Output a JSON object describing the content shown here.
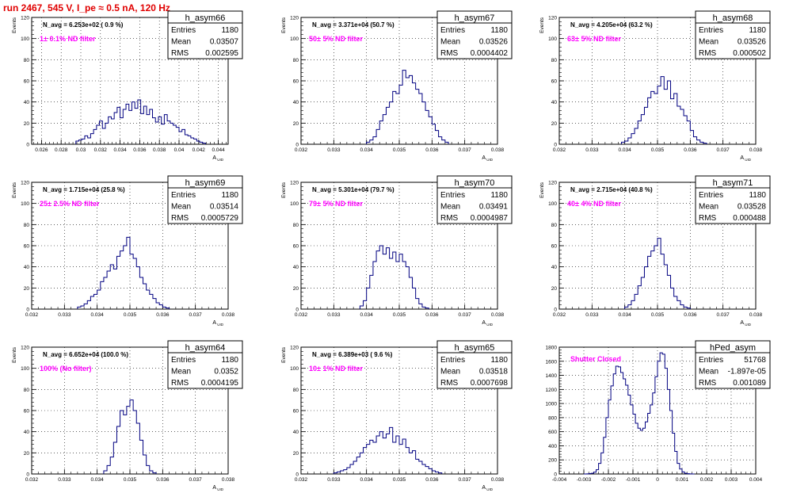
{
  "page_title": "run 2467,   545 V, I_pe ≈ 0.5 nA, 120 Hz",
  "colors": {
    "title": "#e00000",
    "annotation": "#ff00ff",
    "histogram": "#000080",
    "grid": "#000000"
  },
  "chart_data": [
    {
      "type": "histogram",
      "name": "h_asym66",
      "annotation": "1± 0.1% ND filter",
      "navg": "N_avg = 6.253e+02 ( 0.9 %)",
      "stats": {
        "entries": "1180",
        "mean": "0.03507",
        "rms": "0.002595"
      },
      "xlabel": "A_UID",
      "ylabel": "Events",
      "xlim": [
        0.025,
        0.045
      ],
      "ylim": [
        0,
        120
      ],
      "xticks": [
        "0.026",
        "0.028",
        "0.03",
        "0.032",
        "0.034",
        "0.036",
        "0.038",
        "0.04",
        "0.042",
        "0.044"
      ],
      "yticks": [
        "0",
        "20",
        "40",
        "60",
        "80",
        "100",
        "120"
      ],
      "bin_start": 0.0295,
      "bin_width": 0.0003,
      "values": [
        3,
        4,
        5,
        8,
        6,
        10,
        14,
        18,
        22,
        15,
        20,
        26,
        24,
        30,
        35,
        25,
        33,
        38,
        32,
        40,
        34,
        42,
        29,
        36,
        28,
        33,
        25,
        21,
        26,
        19,
        28,
        22,
        20,
        18,
        16,
        12,
        14,
        9,
        8,
        6,
        5,
        3,
        2,
        1
      ]
    },
    {
      "type": "histogram",
      "name": "h_asym67",
      "annotation": "50± 5% ND filter",
      "navg": "N_avg = 3.371e+04 (50.7 %)",
      "stats": {
        "entries": "1180",
        "mean": "0.03526",
        "rms": "0.0004402"
      },
      "xlabel": "A_UID",
      "ylabel": "Events",
      "xlim": [
        0.032,
        0.038
      ],
      "ylim": [
        0,
        120
      ],
      "xticks": [
        "0.032",
        "0.033",
        "0.034",
        "0.035",
        "0.036",
        "0.037",
        "0.038"
      ],
      "yticks": [
        "0",
        "20",
        "40",
        "60",
        "80",
        "100",
        "120"
      ],
      "bin_start": 0.034,
      "bin_width": 0.0001,
      "values": [
        2,
        4,
        7,
        14,
        22,
        28,
        35,
        40,
        50,
        48,
        56,
        70,
        63,
        65,
        58,
        52,
        48,
        40,
        32,
        26,
        19,
        13,
        7,
        4,
        2
      ]
    },
    {
      "type": "histogram",
      "name": "h_asym68",
      "annotation": "63± 5% ND filter",
      "navg": "N_avg = 4.205e+04 (63.2 %)",
      "stats": {
        "entries": "1180",
        "mean": "0.03526",
        "rms": "0.000502"
      },
      "xlabel": "A_UID",
      "ylabel": "Events",
      "xlim": [
        0.032,
        0.038
      ],
      "ylim": [
        0,
        120
      ],
      "xticks": [
        "0.032",
        "0.033",
        "0.034",
        "0.035",
        "0.036",
        "0.037",
        "0.038"
      ],
      "yticks": [
        "0",
        "20",
        "40",
        "60",
        "80",
        "100",
        "120"
      ],
      "bin_start": 0.0339,
      "bin_width": 0.0001,
      "values": [
        2,
        3,
        6,
        10,
        15,
        22,
        28,
        35,
        44,
        50,
        48,
        55,
        64,
        52,
        60,
        43,
        48,
        36,
        33,
        27,
        22,
        13,
        7,
        4,
        2,
        1
      ]
    },
    {
      "type": "histogram",
      "name": "h_asym69",
      "annotation": "25± 2.5% ND filter",
      "navg": "N_avg = 1.715e+04 (25.8 %)",
      "stats": {
        "entries": "1180",
        "mean": "0.03514",
        "rms": "0.0005729"
      },
      "xlabel": "A_UID",
      "ylabel": "Events",
      "xlim": [
        0.032,
        0.038
      ],
      "ylim": [
        0,
        120
      ],
      "xticks": [
        "0.032",
        "0.033",
        "0.034",
        "0.035",
        "0.036",
        "0.037",
        "0.038"
      ],
      "yticks": [
        "0",
        "20",
        "40",
        "60",
        "80",
        "100",
        "120"
      ],
      "bin_start": 0.0334,
      "bin_width": 0.0001,
      "values": [
        2,
        3,
        5,
        8,
        12,
        14,
        18,
        26,
        30,
        36,
        42,
        38,
        50,
        55,
        60,
        68,
        52,
        48,
        40,
        30,
        24,
        18,
        14,
        10,
        6,
        4,
        2,
        1
      ]
    },
    {
      "type": "histogram",
      "name": "h_asym70",
      "annotation": "79± 5% ND filter",
      "navg": "N_avg = 5.301e+04 (79.7 %)",
      "stats": {
        "entries": "1180",
        "mean": "0.03491",
        "rms": "0.0004987"
      },
      "xlabel": "A_UID",
      "ylabel": "Events",
      "xlim": [
        0.032,
        0.038
      ],
      "ylim": [
        0,
        120
      ],
      "xticks": [
        "0.032",
        "0.033",
        "0.034",
        "0.035",
        "0.036",
        "0.037",
        "0.038"
      ],
      "yticks": [
        "0",
        "20",
        "40",
        "60",
        "80",
        "100",
        "120"
      ],
      "bin_start": 0.0338,
      "bin_width": 0.0001,
      "values": [
        3,
        8,
        20,
        32,
        45,
        55,
        60,
        52,
        58,
        48,
        54,
        45,
        52,
        45,
        40,
        30,
        20,
        10,
        5,
        2,
        1
      ]
    },
    {
      "type": "histogram",
      "name": "h_asym71",
      "annotation": "40± 4% ND filter",
      "navg": "N_avg = 2.715e+04 (40.8 %)",
      "stats": {
        "entries": "1180",
        "mean": "0.03528",
        "rms": "0.000488"
      },
      "xlabel": "A_UID",
      "ylabel": "Events",
      "xlim": [
        0.032,
        0.038
      ],
      "ylim": [
        0,
        120
      ],
      "xticks": [
        "0.032",
        "0.033",
        "0.034",
        "0.035",
        "0.036",
        "0.037",
        "0.038"
      ],
      "yticks": [
        "0",
        "20",
        "40",
        "60",
        "80",
        "100",
        "120"
      ],
      "bin_start": 0.034,
      "bin_width": 0.0001,
      "values": [
        2,
        4,
        8,
        14,
        22,
        30,
        40,
        50,
        55,
        60,
        67,
        52,
        42,
        32,
        20,
        12,
        8,
        4,
        2,
        1
      ]
    },
    {
      "type": "histogram",
      "name": "h_asym64",
      "annotation": "100% (No filter)",
      "navg": "N_avg = 6.652e+04 (100.0 %)",
      "stats": {
        "entries": "1180",
        "mean": "0.0352",
        "rms": "0.0004195"
      },
      "xlabel": "A_UID",
      "ylabel": "Events",
      "xlim": [
        0.032,
        0.038
      ],
      "ylim": [
        0,
        120
      ],
      "xticks": [
        "0.032",
        "0.033",
        "0.034",
        "0.035",
        "0.036",
        "0.037",
        "0.038"
      ],
      "yticks": [
        "0",
        "20",
        "40",
        "60",
        "80",
        "100",
        "120"
      ],
      "bin_start": 0.0342,
      "bin_width": 0.0001,
      "values": [
        3,
        8,
        16,
        30,
        45,
        60,
        56,
        64,
        70,
        60,
        48,
        32,
        18,
        8,
        3,
        1
      ]
    },
    {
      "type": "histogram",
      "name": "h_asym65",
      "annotation": "10± 1% ND filter",
      "navg": "N_avg = 6.389e+03 ( 9.6 %)",
      "stats": {
        "entries": "1180",
        "mean": "0.03518",
        "rms": "0.0007698"
      },
      "xlabel": "A_UID",
      "ylabel": "Events",
      "xlim": [
        0.032,
        0.038
      ],
      "ylim": [
        0,
        120
      ],
      "xticks": [
        "0.032",
        "0.033",
        "0.034",
        "0.035",
        "0.036",
        "0.037",
        "0.038"
      ],
      "yticks": [
        "0",
        "20",
        "40",
        "60",
        "80",
        "100",
        "120"
      ],
      "bin_start": 0.033,
      "bin_width": 0.0001,
      "values": [
        1,
        2,
        3,
        4,
        6,
        9,
        12,
        16,
        20,
        25,
        28,
        32,
        30,
        36,
        40,
        34,
        38,
        44,
        30,
        36,
        28,
        33,
        25,
        20,
        22,
        14,
        12,
        9,
        7,
        5,
        3,
        2,
        1
      ]
    },
    {
      "type": "histogram",
      "name": "hPed_asym",
      "annotation": "Shutter Closed",
      "stats": {
        "entries": "51768",
        "mean": "-1.897e-05",
        "rms": "0.001089"
      },
      "xlabel": "",
      "ylabel": "",
      "xlim": [
        -0.004,
        0.004
      ],
      "ylim": [
        0,
        1800
      ],
      "xticks": [
        "-0.004",
        "-0.003",
        "-0.002",
        "-0.001",
        "0",
        "0.001",
        "0.002",
        "0.003",
        "0.004"
      ],
      "yticks": [
        "0",
        "200",
        "400",
        "600",
        "800",
        "1000",
        "1200",
        "1400",
        "1600",
        "1800"
      ],
      "bin_start": -0.003,
      "bin_width": 0.0001,
      "values": [
        0,
        2,
        5,
        10,
        25,
        60,
        150,
        300,
        520,
        800,
        1050,
        1250,
        1420,
        1530,
        1520,
        1440,
        1350,
        1260,
        1120,
        980,
        850,
        720,
        650,
        620,
        650,
        740,
        860,
        980,
        1150,
        1380,
        1600,
        1720,
        1700,
        1500,
        1200,
        900,
        580,
        320,
        150,
        70,
        30,
        10,
        4,
        1,
        0
      ]
    }
  ]
}
